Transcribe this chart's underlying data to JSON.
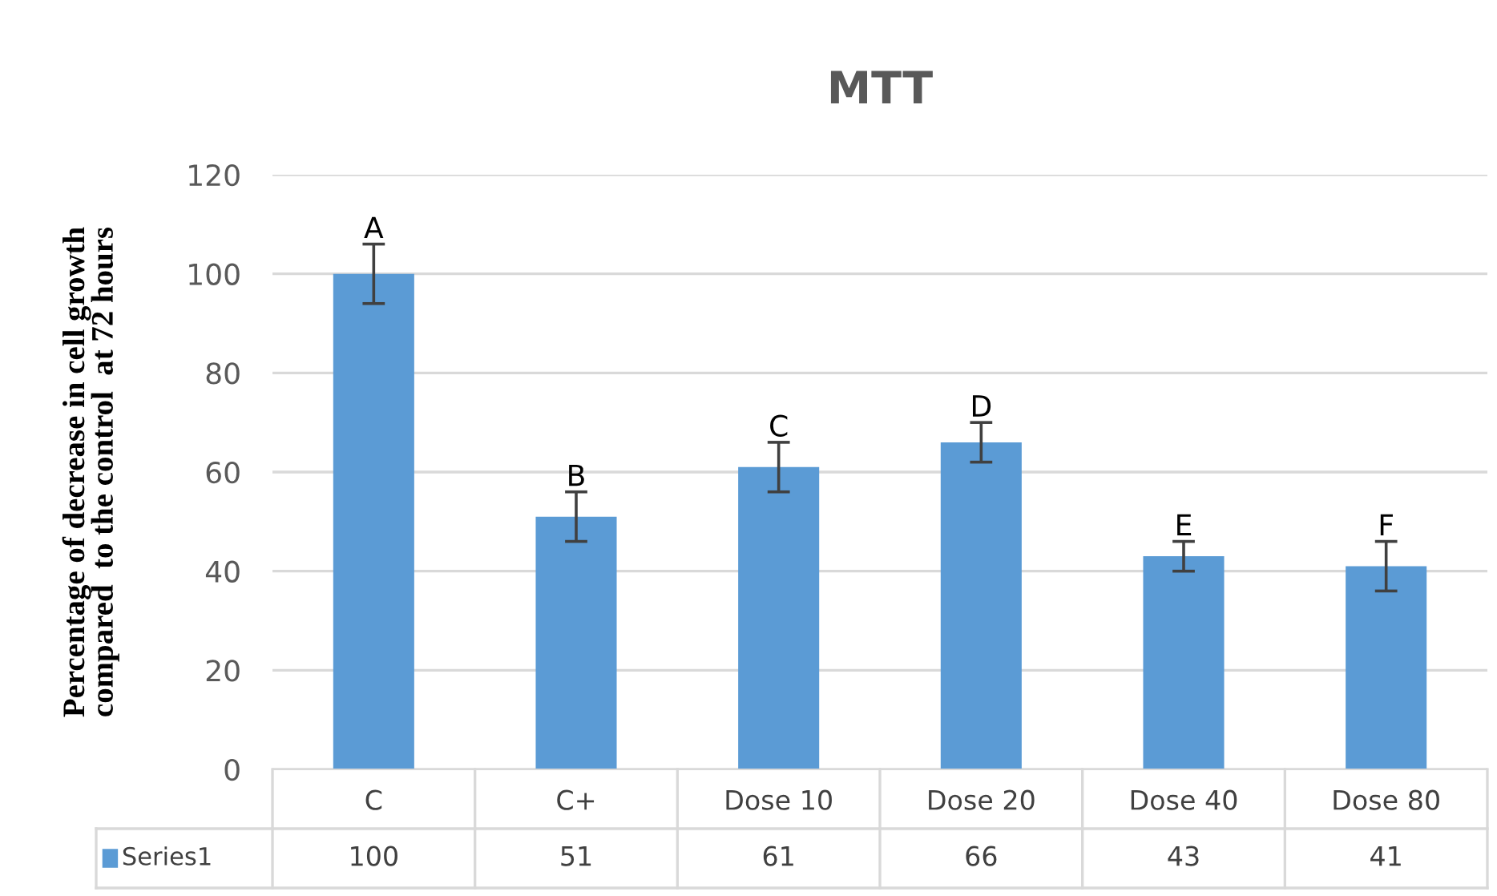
{
  "chart_data": {
    "type": "bar",
    "title": "MTT",
    "ylabel": "Percentage of decrease in cell growth\ncompared  to the control  at 72 hours",
    "categories": [
      "C",
      "C+",
      "Dose 10",
      "Dose 20",
      "Dose 40",
      "Dose 80"
    ],
    "series": [
      {
        "name": "Series1",
        "color": "#5b9bd5",
        "values": [
          100,
          51,
          61,
          66,
          43,
          41
        ],
        "errors": [
          6,
          5,
          5,
          4,
          3,
          5
        ]
      }
    ],
    "annotations": [
      {
        "text": "A",
        "x": "C",
        "y": 106
      },
      {
        "text": "B",
        "x": "C+",
        "y": 56
      },
      {
        "text": "C",
        "x": "Dose 10",
        "y": 66
      },
      {
        "text": "D",
        "x": "Dose 20",
        "y": 70
      },
      {
        "text": "E",
        "x": "Dose 40",
        "y": 46
      },
      {
        "text": "F",
        "x": "Dose 80",
        "y": 46
      }
    ],
    "ylim": [
      0,
      120
    ],
    "yticks": [
      0,
      20,
      40,
      60,
      80,
      100,
      120
    ],
    "grid": "y",
    "data_labels": true
  }
}
